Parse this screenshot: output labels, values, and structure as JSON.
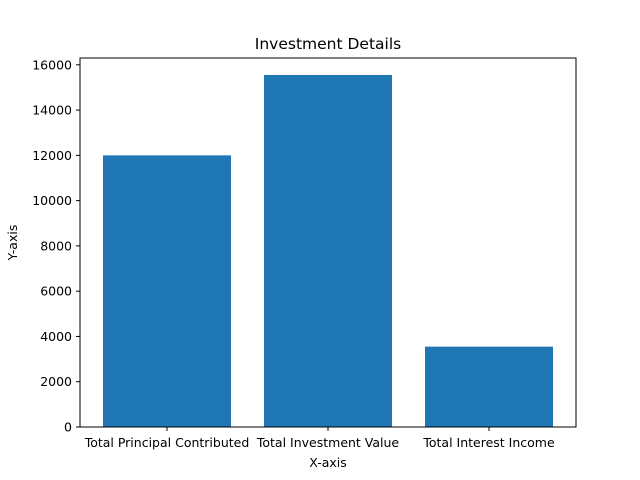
{
  "chart_data": {
    "type": "bar",
    "title": "Investment Details",
    "xlabel": "X-axis",
    "ylabel": "Y-axis",
    "categories": [
      "Total Principal Contributed",
      "Total Investment Value",
      "Total Interest Income"
    ],
    "values": [
      12000,
      15550,
      3550
    ],
    "ylim": [
      0,
      16300
    ],
    "yticks": [
      0,
      2000,
      4000,
      6000,
      8000,
      10000,
      12000,
      14000,
      16000
    ],
    "grid": false,
    "bar_color": "#1f77b4"
  }
}
